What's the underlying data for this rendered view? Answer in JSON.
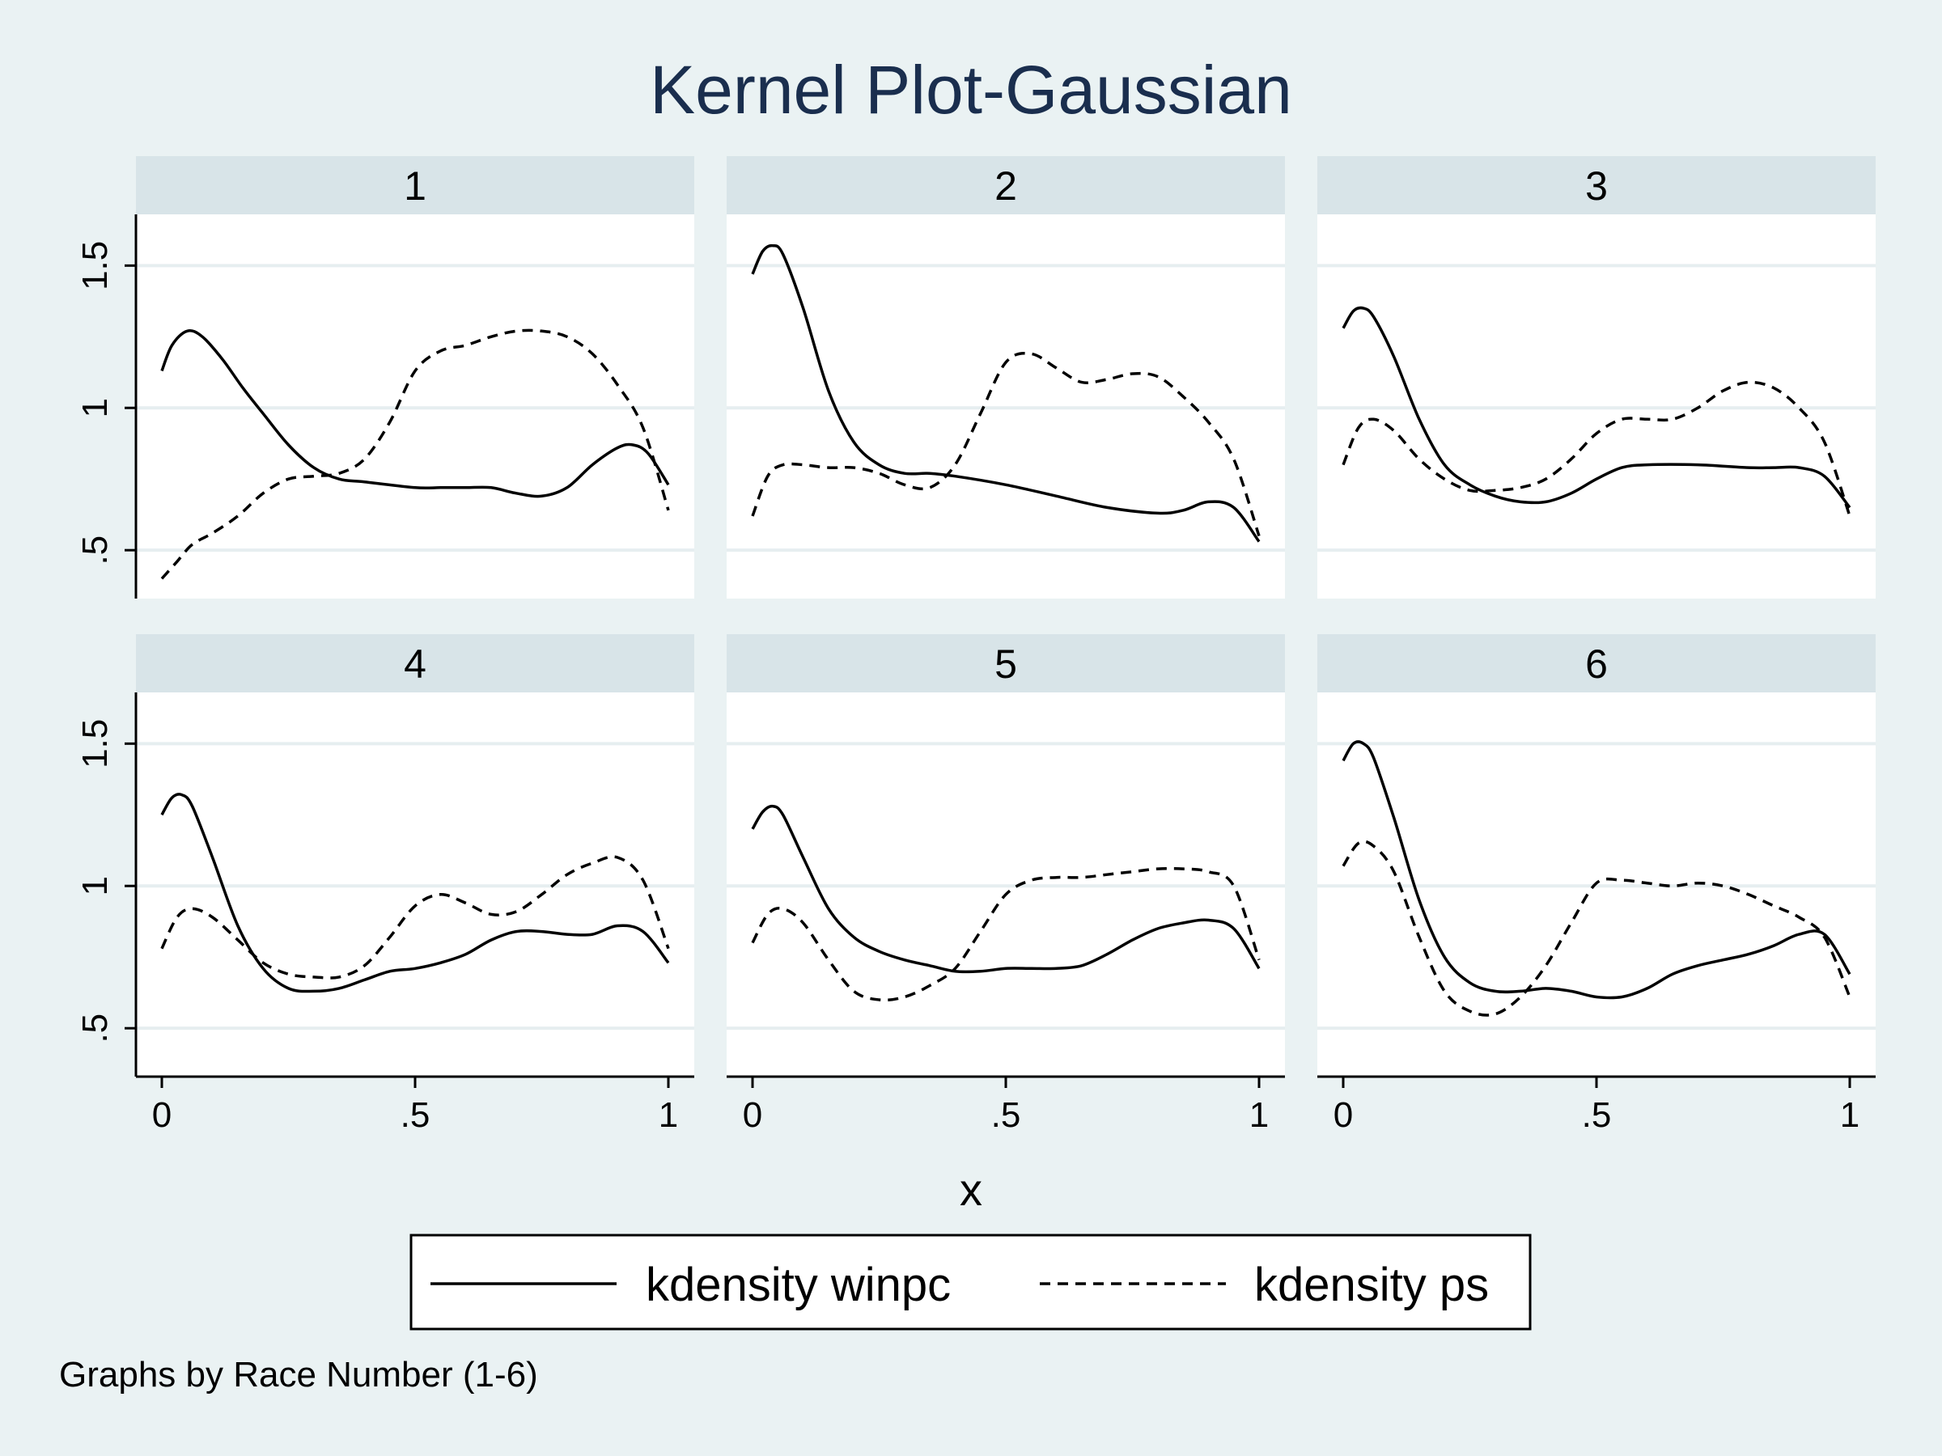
{
  "chart_data": {
    "type": "line",
    "title": "Kernel Plot-Gaussian",
    "xlabel": "x",
    "ylabel": "",
    "xlim": [
      0,
      1
    ],
    "ylim": [
      0.33,
      1.68
    ],
    "x_ticks": [
      "0",
      ".5",
      "1"
    ],
    "y_ticks": [
      ".5",
      "1",
      "1.5"
    ],
    "grid": true,
    "legend": {
      "position": "bottom",
      "entries": [
        "kdensity winpc",
        "kdensity ps"
      ]
    },
    "note": "Graphs by Race Number (1-6)",
    "series_styles": {
      "kdensity winpc": "solid",
      "kdensity ps": "dashed"
    },
    "panels": [
      {
        "label": "1",
        "series": [
          {
            "name": "kdensity winpc",
            "x": [
              0,
              0.02,
              0.05,
              0.08,
              0.12,
              0.16,
              0.2,
              0.25,
              0.3,
              0.35,
              0.4,
              0.5,
              0.55,
              0.6,
              0.65,
              0.7,
              0.75,
              0.8,
              0.85,
              0.9,
              0.93,
              0.96,
              1.0
            ],
            "y": [
              1.13,
              1.22,
              1.27,
              1.25,
              1.17,
              1.07,
              0.98,
              0.87,
              0.79,
              0.75,
              0.74,
              0.72,
              0.72,
              0.72,
              0.72,
              0.7,
              0.69,
              0.72,
              0.8,
              0.86,
              0.87,
              0.84,
              0.73
            ]
          },
          {
            "name": "kdensity ps",
            "x": [
              0,
              0.03,
              0.06,
              0.1,
              0.15,
              0.2,
              0.25,
              0.3,
              0.35,
              0.4,
              0.45,
              0.5,
              0.55,
              0.6,
              0.65,
              0.7,
              0.75,
              0.8,
              0.85,
              0.9,
              0.95,
              1.0
            ],
            "y": [
              0.4,
              0.46,
              0.52,
              0.56,
              0.62,
              0.7,
              0.75,
              0.76,
              0.77,
              0.82,
              0.95,
              1.13,
              1.2,
              1.22,
              1.25,
              1.27,
              1.27,
              1.25,
              1.19,
              1.08,
              0.93,
              0.64
            ]
          }
        ]
      },
      {
        "label": "2",
        "series": [
          {
            "name": "kdensity winpc",
            "x": [
              0,
              0.02,
              0.04,
              0.06,
              0.1,
              0.15,
              0.2,
              0.25,
              0.3,
              0.35,
              0.4,
              0.5,
              0.6,
              0.7,
              0.8,
              0.85,
              0.9,
              0.95,
              1.0
            ],
            "y": [
              1.47,
              1.55,
              1.57,
              1.54,
              1.35,
              1.06,
              0.88,
              0.8,
              0.77,
              0.77,
              0.76,
              0.73,
              0.69,
              0.65,
              0.63,
              0.64,
              0.67,
              0.65,
              0.53
            ]
          },
          {
            "name": "kdensity ps",
            "x": [
              0,
              0.03,
              0.06,
              0.1,
              0.15,
              0.2,
              0.25,
              0.3,
              0.35,
              0.4,
              0.45,
              0.5,
              0.55,
              0.6,
              0.65,
              0.7,
              0.75,
              0.8,
              0.85,
              0.9,
              0.95,
              1.0
            ],
            "y": [
              0.62,
              0.76,
              0.8,
              0.8,
              0.79,
              0.79,
              0.77,
              0.73,
              0.72,
              0.8,
              0.98,
              1.16,
              1.19,
              1.14,
              1.09,
              1.1,
              1.12,
              1.11,
              1.04,
              0.95,
              0.82,
              0.55
            ]
          }
        ]
      },
      {
        "label": "3",
        "series": [
          {
            "name": "kdensity winpc",
            "x": [
              0,
              0.02,
              0.04,
              0.06,
              0.1,
              0.15,
              0.2,
              0.25,
              0.3,
              0.35,
              0.4,
              0.45,
              0.5,
              0.55,
              0.6,
              0.7,
              0.8,
              0.85,
              0.9,
              0.95,
              1.0
            ],
            "y": [
              1.28,
              1.34,
              1.35,
              1.32,
              1.18,
              0.96,
              0.8,
              0.73,
              0.69,
              0.67,
              0.67,
              0.7,
              0.75,
              0.79,
              0.8,
              0.8,
              0.79,
              0.79,
              0.79,
              0.76,
              0.65
            ]
          },
          {
            "name": "kdensity ps",
            "x": [
              0,
              0.03,
              0.06,
              0.1,
              0.15,
              0.2,
              0.25,
              0.3,
              0.35,
              0.4,
              0.45,
              0.5,
              0.55,
              0.6,
              0.65,
              0.7,
              0.75,
              0.8,
              0.85,
              0.9,
              0.95,
              1.0
            ],
            "y": [
              0.8,
              0.93,
              0.96,
              0.92,
              0.82,
              0.75,
              0.71,
              0.71,
              0.72,
              0.75,
              0.82,
              0.91,
              0.96,
              0.96,
              0.96,
              1.0,
              1.06,
              1.09,
              1.07,
              1.0,
              0.88,
              0.62
            ]
          }
        ]
      },
      {
        "label": "4",
        "series": [
          {
            "name": "kdensity winpc",
            "x": [
              0,
              0.02,
              0.04,
              0.06,
              0.1,
              0.15,
              0.2,
              0.25,
              0.3,
              0.35,
              0.4,
              0.45,
              0.5,
              0.55,
              0.6,
              0.65,
              0.7,
              0.75,
              0.8,
              0.85,
              0.9,
              0.95,
              1.0
            ],
            "y": [
              1.25,
              1.31,
              1.32,
              1.28,
              1.1,
              0.86,
              0.71,
              0.64,
              0.63,
              0.64,
              0.67,
              0.7,
              0.71,
              0.73,
              0.76,
              0.81,
              0.84,
              0.84,
              0.83,
              0.83,
              0.86,
              0.84,
              0.73
            ]
          },
          {
            "name": "kdensity ps",
            "x": [
              0,
              0.03,
              0.06,
              0.1,
              0.15,
              0.2,
              0.25,
              0.3,
              0.35,
              0.4,
              0.45,
              0.5,
              0.55,
              0.6,
              0.65,
              0.7,
              0.75,
              0.8,
              0.85,
              0.9,
              0.95,
              1.0
            ],
            "y": [
              0.78,
              0.89,
              0.92,
              0.89,
              0.81,
              0.73,
              0.69,
              0.68,
              0.68,
              0.72,
              0.82,
              0.93,
              0.97,
              0.94,
              0.9,
              0.91,
              0.97,
              1.04,
              1.08,
              1.1,
              1.02,
              0.78
            ]
          }
        ]
      },
      {
        "label": "5",
        "series": [
          {
            "name": "kdensity winpc",
            "x": [
              0,
              0.02,
              0.04,
              0.06,
              0.1,
              0.15,
              0.2,
              0.25,
              0.3,
              0.35,
              0.4,
              0.45,
              0.5,
              0.55,
              0.6,
              0.65,
              0.7,
              0.75,
              0.8,
              0.85,
              0.9,
              0.95,
              1.0
            ],
            "y": [
              1.2,
              1.26,
              1.28,
              1.25,
              1.1,
              0.92,
              0.82,
              0.77,
              0.74,
              0.72,
              0.7,
              0.7,
              0.71,
              0.71,
              0.71,
              0.72,
              0.76,
              0.81,
              0.85,
              0.87,
              0.88,
              0.85,
              0.71
            ]
          },
          {
            "name": "kdensity ps",
            "x": [
              0,
              0.03,
              0.06,
              0.1,
              0.15,
              0.2,
              0.25,
              0.3,
              0.35,
              0.4,
              0.45,
              0.5,
              0.55,
              0.6,
              0.65,
              0.7,
              0.75,
              0.8,
              0.85,
              0.9,
              0.95,
              1.0
            ],
            "y": [
              0.8,
              0.9,
              0.92,
              0.87,
              0.74,
              0.63,
              0.6,
              0.61,
              0.65,
              0.71,
              0.84,
              0.97,
              1.02,
              1.03,
              1.03,
              1.04,
              1.05,
              1.06,
              1.06,
              1.05,
              1.0,
              0.74
            ]
          }
        ]
      },
      {
        "label": "6",
        "series": [
          {
            "name": "kdensity winpc",
            "x": [
              0,
              0.02,
              0.04,
              0.06,
              0.1,
              0.15,
              0.2,
              0.25,
              0.3,
              0.35,
              0.4,
              0.45,
              0.5,
              0.55,
              0.6,
              0.65,
              0.7,
              0.75,
              0.8,
              0.85,
              0.9,
              0.95,
              1.0
            ],
            "y": [
              1.44,
              1.5,
              1.5,
              1.45,
              1.24,
              0.95,
              0.75,
              0.66,
              0.63,
              0.63,
              0.64,
              0.63,
              0.61,
              0.61,
              0.64,
              0.69,
              0.72,
              0.74,
              0.76,
              0.79,
              0.83,
              0.83,
              0.69
            ]
          },
          {
            "name": "kdensity ps",
            "x": [
              0,
              0.03,
              0.06,
              0.1,
              0.15,
              0.2,
              0.25,
              0.3,
              0.35,
              0.4,
              0.45,
              0.5,
              0.55,
              0.6,
              0.65,
              0.7,
              0.75,
              0.8,
              0.85,
              0.9,
              0.95,
              1.0
            ],
            "y": [
              1.07,
              1.15,
              1.14,
              1.05,
              0.82,
              0.63,
              0.56,
              0.55,
              0.61,
              0.72,
              0.87,
              1.01,
              1.02,
              1.01,
              1.0,
              1.01,
              1.0,
              0.97,
              0.93,
              0.89,
              0.82,
              0.61
            ]
          }
        ]
      }
    ]
  }
}
